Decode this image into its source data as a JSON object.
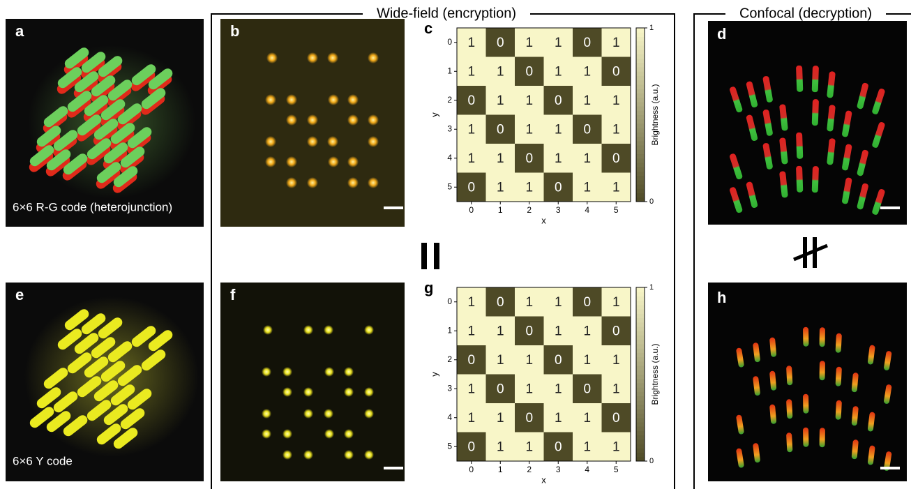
{
  "sections": [
    "Wide-field (encryption)",
    "Confocal (decryption)"
  ],
  "panels": [
    {
      "label": "a",
      "caption": "6×6 R-G code (heterojunction)"
    },
    {
      "label": "b"
    },
    {
      "label": "d"
    },
    {
      "label": "e",
      "caption": "6×6 Y code"
    },
    {
      "label": "f"
    },
    {
      "label": "h"
    }
  ],
  "chart_data": [
    {
      "type": "heatmap",
      "panel_label": "c",
      "x": [
        0,
        1,
        2,
        3,
        4,
        5
      ],
      "y": [
        0,
        1,
        2,
        3,
        4,
        5
      ],
      "values": [
        [
          1,
          0,
          1,
          1,
          0,
          1
        ],
        [
          1,
          1,
          0,
          1,
          1,
          0
        ],
        [
          0,
          1,
          1,
          0,
          1,
          1
        ],
        [
          1,
          0,
          1,
          1,
          0,
          1
        ],
        [
          1,
          1,
          0,
          1,
          1,
          0
        ],
        [
          0,
          1,
          1,
          0,
          1,
          1
        ]
      ],
      "xlabel": "x",
      "ylabel": "y",
      "colorbar_label": "Brightness (a.u.)",
      "clim": [
        0,
        1
      ],
      "cticks": [
        0,
        1
      ],
      "colors": [
        "#4e4a26",
        "#f8f6c8"
      ]
    },
    {
      "type": "heatmap",
      "panel_label": "g",
      "x": [
        0,
        1,
        2,
        3,
        4,
        5
      ],
      "y": [
        0,
        1,
        2,
        3,
        4,
        5
      ],
      "values": [
        [
          1,
          0,
          1,
          1,
          0,
          1
        ],
        [
          1,
          1,
          0,
          1,
          1,
          0
        ],
        [
          0,
          1,
          1,
          0,
          1,
          1
        ],
        [
          1,
          0,
          1,
          1,
          0,
          1
        ],
        [
          1,
          1,
          0,
          1,
          1,
          0
        ],
        [
          0,
          1,
          1,
          0,
          1,
          1
        ]
      ],
      "xlabel": "x",
      "ylabel": "y",
      "colorbar_label": "Brightness (a.u.)",
      "clim": [
        0,
        1
      ],
      "cticks": [
        0,
        1
      ],
      "colors": [
        "#4e4a26",
        "#f8f6c8"
      ]
    }
  ]
}
